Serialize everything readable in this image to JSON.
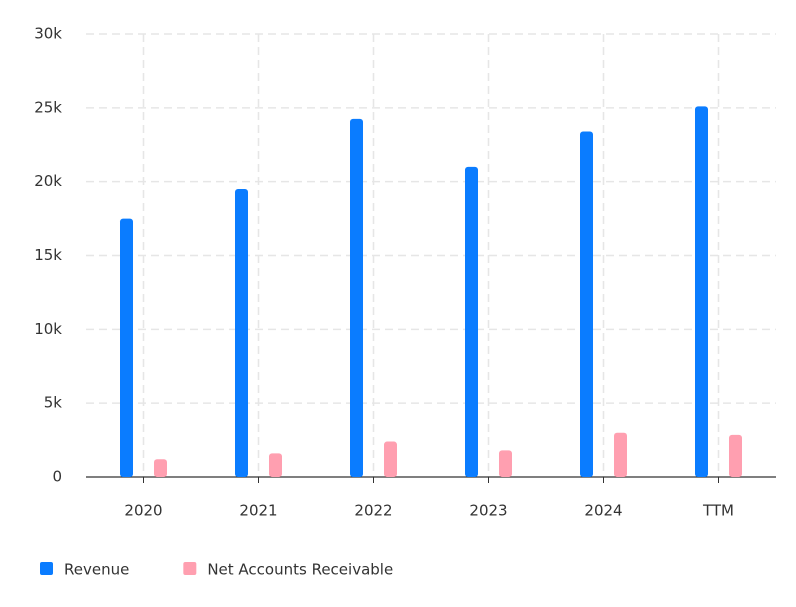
{
  "chart_data": {
    "type": "bar",
    "categories": [
      "2020",
      "2021",
      "2022",
      "2023",
      "2024",
      "TTM"
    ],
    "series": [
      {
        "name": "Revenue",
        "color": "#0a7cff",
        "values": [
          17500,
          19500,
          24250,
          21000,
          23400,
          25100
        ]
      },
      {
        "name": "Net Accounts Receivable",
        "color": "#ff9fb0",
        "values": [
          1200,
          1600,
          2400,
          1800,
          3000,
          2850
        ]
      }
    ],
    "ylim": [
      0,
      30000
    ],
    "yticks": [
      0,
      {
        "value": 5000,
        "label": "5k"
      },
      {
        "value": 10000,
        "label": "10k"
      },
      {
        "value": 15000,
        "label": "15k"
      },
      {
        "value": 20000,
        "label": "20k"
      },
      {
        "value": 25000,
        "label": "25k"
      },
      {
        "value": 30000,
        "label": "30k"
      }
    ],
    "grid": true,
    "legend": "bottom"
  }
}
